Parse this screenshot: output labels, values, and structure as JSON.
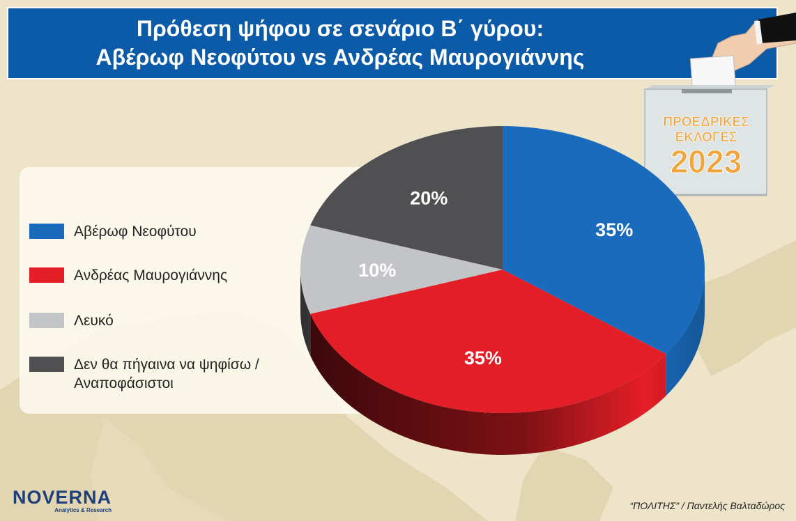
{
  "title": {
    "line1": "Πρόθεση ψήφου σε σενάριο Β΄ γύρου:",
    "line2": "Αβέρωφ Νεοφύτου vs Ανδρέας Μαυρογιάννης"
  },
  "badge": {
    "line1": "ΠΡΟΕΔΡΙΚΕΣ",
    "line2": "ΕΚΛΟΓΕΣ",
    "year": "2023"
  },
  "logo": {
    "name": "NOVERNA",
    "tagline": "Analytics & Research"
  },
  "credit": "“ΠΟΛΙΤΗΣ” / Παντελής Βαλταδώρος",
  "colors": {
    "blue": "#1a6bbd",
    "red": "#e41e26",
    "grey": "#c3c4c8",
    "dark": "#505053",
    "banner": "#0b5ba8",
    "badge_text": "#f0a53c"
  },
  "chart_data": {
    "type": "pie",
    "unit": "%",
    "slices": [
      {
        "name": "Αβέρωφ Νεοφύτου",
        "value": 35,
        "label": "35%",
        "color": "#1a6bbd"
      },
      {
        "name": "Ανδρέας Μαυρογιάννης",
        "value": 35,
        "label": "35%",
        "color": "#e41e26"
      },
      {
        "name": "Λευκό",
        "value": 10,
        "label": "10%",
        "color": "#c3c4c8"
      },
      {
        "name": "Δεν θα πήγαινα να ψηφίσω /\nΑναποφάσιστοι",
        "value": 20,
        "label": "20%",
        "color": "#505053"
      }
    ],
    "legend_position": "left"
  }
}
